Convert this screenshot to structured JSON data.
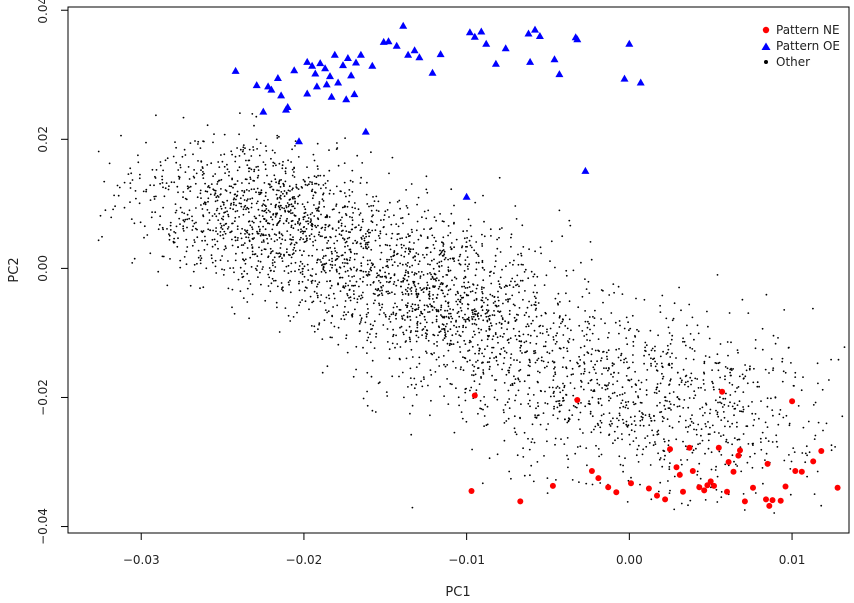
{
  "chart_data": {
    "type": "scatter",
    "title": "",
    "xlabel": "PC1",
    "ylabel": "PC2",
    "xlim": [
      -0.0345,
      0.0135
    ],
    "ylim": [
      -0.041,
      0.0405
    ],
    "x_ticks": [
      -0.03,
      -0.02,
      -0.01,
      0.0,
      0.01
    ],
    "x_tick_labels": [
      "−0.03",
      "−0.02",
      "−0.01",
      "0.00",
      "0.01"
    ],
    "y_ticks": [
      -0.04,
      -0.02,
      0.0,
      0.02,
      0.04
    ],
    "y_tick_labels": [
      "−0.04",
      "−0.02",
      "0.00",
      "0.02",
      "0.04"
    ],
    "grid": false,
    "legend_position": "top-right",
    "legend": [
      {
        "label": "Pattern NE",
        "marker": "circle",
        "color": "#ff0000"
      },
      {
        "label": "Pattern OE",
        "marker": "triangle",
        "color": "#0000ff"
      },
      {
        "label": "Other",
        "marker": "dot",
        "color": "#000000"
      }
    ],
    "series": [
      {
        "name": "Pattern OE",
        "marker": "triangle",
        "color": "#0000ff",
        "points": [
          [
            -0.0242,
            0.0306
          ],
          [
            -0.0229,
            0.0284
          ],
          [
            -0.0222,
            0.0282
          ],
          [
            -0.0216,
            0.0295
          ],
          [
            -0.022,
            0.0277
          ],
          [
            -0.0214,
            0.0268
          ],
          [
            -0.021,
            0.025
          ],
          [
            -0.0203,
            0.0197
          ],
          [
            -0.0195,
            0.0314
          ],
          [
            -0.0193,
            0.0302
          ],
          [
            -0.019,
            0.0318
          ],
          [
            -0.0187,
            0.031
          ],
          [
            -0.0184,
            0.0298
          ],
          [
            -0.0181,
            0.0331
          ],
          [
            -0.0179,
            0.0288
          ],
          [
            -0.0176,
            0.0315
          ],
          [
            -0.0173,
            0.0326
          ],
          [
            -0.0171,
            0.0299
          ],
          [
            -0.0168,
            0.0319
          ],
          [
            -0.0165,
            0.0331
          ],
          [
            -0.0169,
            0.027
          ],
          [
            -0.0183,
            0.0266
          ],
          [
            -0.0192,
            0.0282
          ],
          [
            -0.0198,
            0.0271
          ],
          [
            -0.0211,
            0.0246
          ],
          [
            -0.0174,
            0.0262
          ],
          [
            -0.0162,
            0.0212
          ],
          [
            -0.0158,
            0.0314
          ],
          [
            -0.0151,
            0.0351
          ],
          [
            -0.0148,
            0.0352
          ],
          [
            -0.0143,
            0.0345
          ],
          [
            -0.0139,
            0.0376
          ],
          [
            -0.0136,
            0.0331
          ],
          [
            -0.0132,
            0.0338
          ],
          [
            -0.0129,
            0.0327
          ],
          [
            -0.0121,
            0.0303
          ],
          [
            -0.0116,
            0.0332
          ],
          [
            -0.0098,
            0.0366
          ],
          [
            -0.0095,
            0.0359
          ],
          [
            -0.0091,
            0.0367
          ],
          [
            -0.0088,
            0.0348
          ],
          [
            -0.0082,
            0.0317
          ],
          [
            -0.0076,
            0.0341
          ],
          [
            -0.0062,
            0.0364
          ],
          [
            -0.0058,
            0.037
          ],
          [
            -0.0061,
            0.032
          ],
          [
            -0.0055,
            0.036
          ],
          [
            -0.0046,
            0.0324
          ],
          [
            -0.0043,
            0.0301
          ],
          [
            -0.0033,
            0.0358
          ],
          [
            -0.0032,
            0.0355
          ],
          [
            -0.0027,
            0.0151
          ],
          [
            -0.01,
            0.0111
          ],
          [
            0.0,
            0.0348
          ],
          [
            -0.0003,
            0.0294
          ],
          [
            0.0007,
            0.0288
          ],
          [
            -0.0198,
            0.032
          ],
          [
            -0.0186,
            0.0285
          ],
          [
            -0.0206,
            0.0307
          ],
          [
            -0.0225,
            0.0243
          ]
        ]
      },
      {
        "name": "Pattern NE",
        "marker": "circle",
        "color": "#ff0000",
        "points": [
          [
            -0.0095,
            -0.0197
          ],
          [
            -0.0097,
            -0.0345
          ],
          [
            -0.0067,
            -0.0361
          ],
          [
            -0.0047,
            -0.0337
          ],
          [
            -0.0032,
            -0.0204
          ],
          [
            -0.0023,
            -0.0314
          ],
          [
            -0.0019,
            -0.0325
          ],
          [
            -0.0013,
            -0.0339
          ],
          [
            -0.0008,
            -0.0347
          ],
          [
            0.0001,
            -0.0333
          ],
          [
            0.0012,
            -0.0341
          ],
          [
            0.0017,
            -0.0352
          ],
          [
            0.0022,
            -0.0358
          ],
          [
            0.0025,
            -0.028
          ],
          [
            0.0029,
            -0.0308
          ],
          [
            0.0031,
            -0.032
          ],
          [
            0.0033,
            -0.0346
          ],
          [
            0.0037,
            -0.0278
          ],
          [
            0.0039,
            -0.0314
          ],
          [
            0.0043,
            -0.0339
          ],
          [
            0.0046,
            -0.0344
          ],
          [
            0.0048,
            -0.0336
          ],
          [
            0.005,
            -0.033
          ],
          [
            0.0052,
            -0.0337
          ],
          [
            0.0055,
            -0.0278
          ],
          [
            0.0057,
            -0.0191
          ],
          [
            0.006,
            -0.0346
          ],
          [
            0.0061,
            -0.03
          ],
          [
            0.0064,
            -0.0315
          ],
          [
            0.0067,
            -0.029
          ],
          [
            0.0068,
            -0.0282
          ],
          [
            0.0071,
            -0.0361
          ],
          [
            0.0076,
            -0.034
          ],
          [
            0.0084,
            -0.0358
          ],
          [
            0.0085,
            -0.0303
          ],
          [
            0.0086,
            -0.0368
          ],
          [
            0.0088,
            -0.0359
          ],
          [
            0.0093,
            -0.036
          ],
          [
            0.01,
            -0.0206
          ],
          [
            0.0102,
            -0.0314
          ],
          [
            0.0106,
            -0.0315
          ],
          [
            0.0113,
            -0.0299
          ],
          [
            0.0118,
            -0.0283
          ],
          [
            0.0128,
            -0.034
          ],
          [
            0.0096,
            -0.0338
          ]
        ]
      },
      {
        "name": "Other",
        "marker": "dot",
        "color": "#000000",
        "generator": {
          "count": 3600,
          "seed": 20240517,
          "clusters": [
            {
              "weight": 0.34,
              "cx": -0.0225,
              "cy": 0.008,
              "sx": 0.004,
              "sy": 0.0058,
              "rho": -0.25
            },
            {
              "weight": 0.36,
              "cx": -0.012,
              "cy": -0.004,
              "sx": 0.0048,
              "sy": 0.0068,
              "rho": -0.35
            },
            {
              "weight": 0.22,
              "cx": -0.0015,
              "cy": -0.0185,
              "sx": 0.0055,
              "sy": 0.007,
              "rho": -0.2
            },
            {
              "weight": 0.08,
              "cx": 0.005,
              "cy": -0.022,
              "sx": 0.004,
              "sy": 0.007,
              "rho": 0.0
            }
          ],
          "xlim": [
            -0.033,
            0.0135
          ],
          "ylim": [
            -0.0385,
            0.027
          ]
        }
      }
    ]
  }
}
